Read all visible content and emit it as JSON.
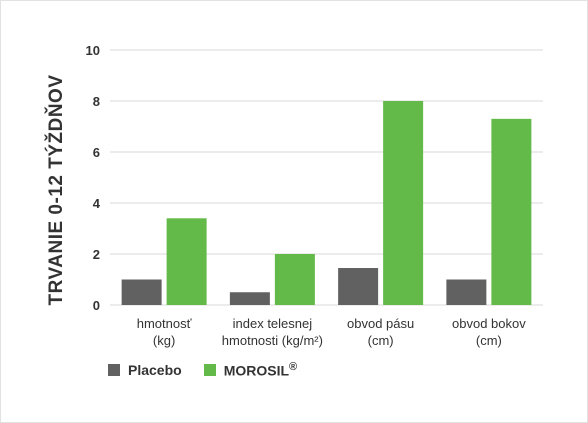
{
  "chart_data": {
    "type": "bar",
    "ylabel": "TRVANIE 0-12 TÝŽDŇOV",
    "ylim": [
      0,
      10
    ],
    "yticks": [
      "0",
      "2",
      "4",
      "6",
      "8",
      "10"
    ],
    "grid": true,
    "legend_position": "bottom-left",
    "categories": [
      [
        "hmotnosť",
        "(kg)"
      ],
      [
        "index telesnej",
        "hmotnosti (kg/m²)"
      ],
      [
        "obvod pásu",
        "(cm)"
      ],
      [
        "obvod bokov",
        "(cm)"
      ]
    ],
    "series": [
      {
        "name": "Placebo",
        "values": [
          1.0,
          0.5,
          1.45,
          1.0
        ],
        "color": "#616161"
      },
      {
        "name": "MOROSIL",
        "values": [
          3.4,
          2.0,
          8.0,
          7.3
        ],
        "color": "#63ba48"
      }
    ],
    "legend_suffix": "®"
  }
}
